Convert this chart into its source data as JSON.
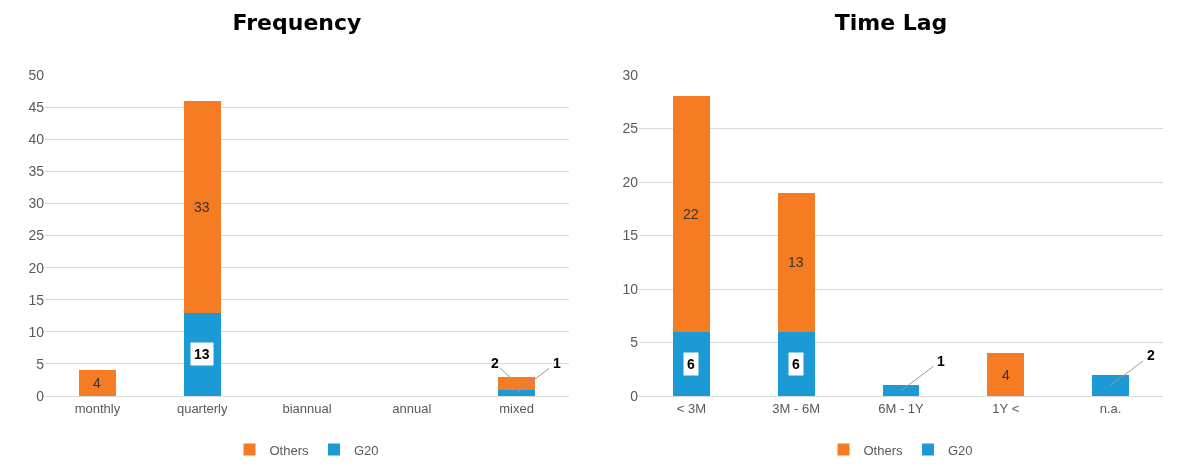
{
  "chart_data": [
    {
      "type": "bar",
      "title": "Frequency",
      "categories": [
        "monthly",
        "quarterly",
        "biannual",
        "annual",
        "mixed"
      ],
      "stacked": true,
      "series": [
        {
          "name": "G20",
          "color": "#1b9ad6",
          "values": [
            0,
            13,
            0,
            0,
            1
          ],
          "value_labels": [
            null,
            "13",
            null,
            null,
            "1"
          ]
        },
        {
          "name": "Others",
          "color": "#f57c22",
          "values": [
            4,
            33,
            0,
            0,
            2
          ],
          "value_labels": [
            "4",
            "33",
            null,
            null,
            "2"
          ]
        }
      ],
      "ylim": [
        0,
        50
      ],
      "yticks": [
        0,
        5,
        10,
        15,
        20,
        25,
        30,
        35,
        40,
        45,
        50
      ],
      "grid": "y",
      "legend": "bottom"
    },
    {
      "type": "bar",
      "title": "Time Lag",
      "categories": [
        "< 3M",
        "3M - 6M",
        "6M - 1Y",
        "1Y <",
        "n.a."
      ],
      "stacked": true,
      "series": [
        {
          "name": "G20",
          "color": "#1b9ad6",
          "values": [
            6,
            6,
            1,
            0,
            2
          ],
          "value_labels": [
            "6",
            "6",
            "1",
            null,
            "2"
          ]
        },
        {
          "name": "Others",
          "color": "#f57c22",
          "values": [
            22,
            13,
            0,
            4,
            0
          ],
          "value_labels": [
            "22",
            "13",
            null,
            "4",
            null
          ]
        }
      ],
      "ylim": [
        0,
        30
      ],
      "yticks": [
        0,
        5,
        10,
        15,
        20,
        25,
        30
      ],
      "grid": "y",
      "legend": "bottom"
    }
  ]
}
